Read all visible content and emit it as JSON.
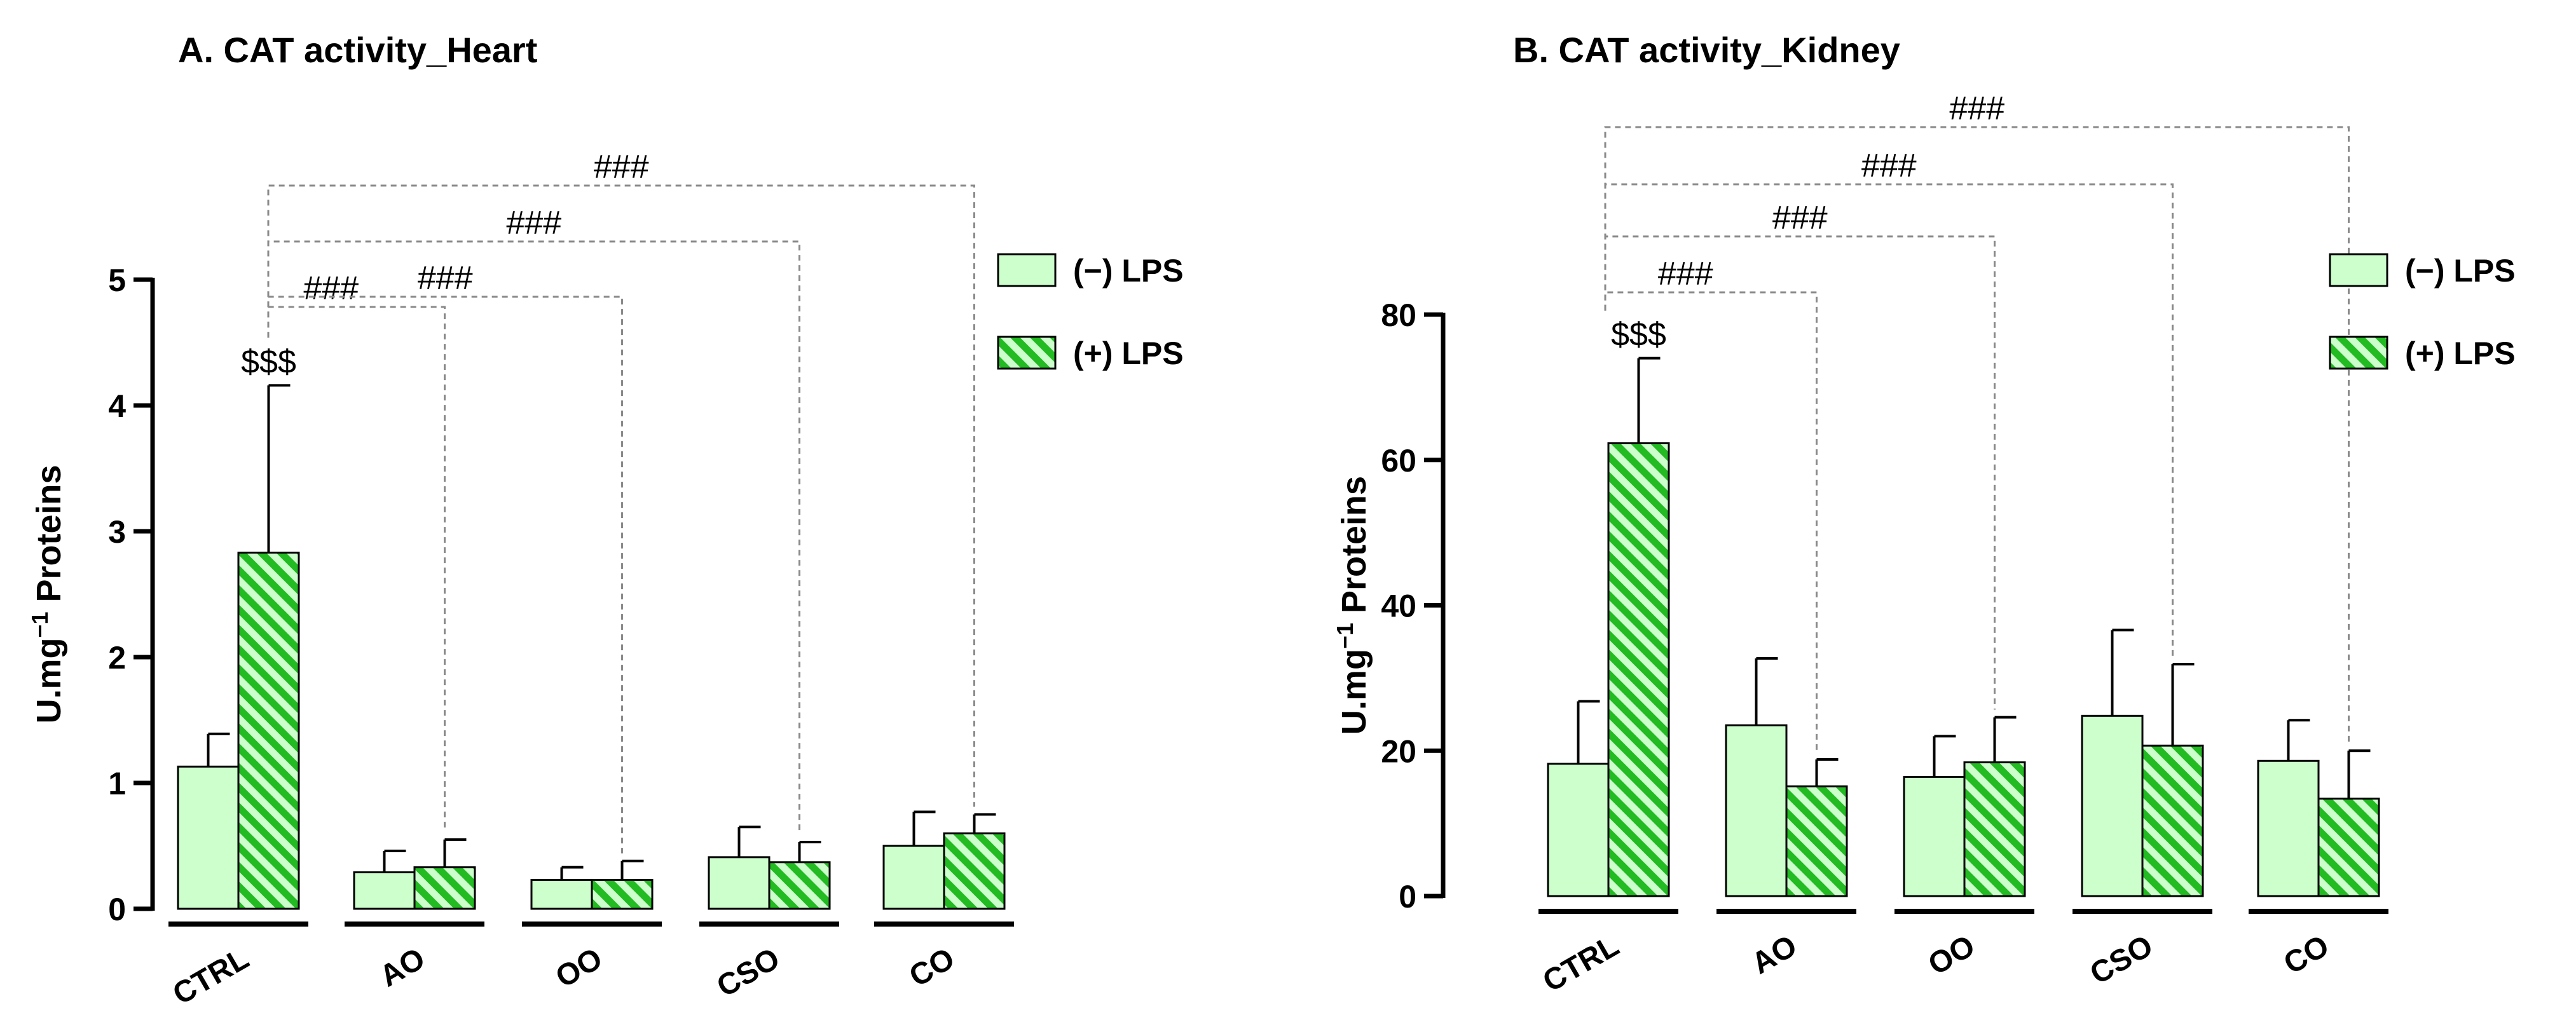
{
  "colors": {
    "light_green": "#ccffcc",
    "dark_green": "#22bb22",
    "hatch_light": "#ccffcc",
    "axis": "#000000"
  },
  "chart_data": [
    {
      "type": "bar",
      "title": "A. CAT activity_Heart",
      "ylabel_main": "U.mg",
      "ylabel_sup": "−1",
      "ylabel_rest": " Proteins",
      "xlabel": "",
      "ylim": [
        0,
        5
      ],
      "yticks": [
        "0",
        "1",
        "2",
        "3",
        "4",
        "5"
      ],
      "categories": [
        "CTRL",
        "AO",
        "OO",
        "CSO",
        "CO"
      ],
      "series": [
        {
          "name": "(−) LPS",
          "values": [
            1.13,
            0.29,
            0.23,
            0.41,
            0.5
          ],
          "errors": [
            0.26,
            0.17,
            0.1,
            0.24,
            0.27
          ]
        },
        {
          "name": "(+) LPS",
          "values": [
            2.83,
            0.33,
            0.23,
            0.37,
            0.6
          ],
          "errors": [
            1.33,
            0.22,
            0.15,
            0.16,
            0.15
          ]
        }
      ],
      "annotations": [
        {
          "text": "$$$",
          "category": "CTRL",
          "series": "(+) LPS"
        }
      ],
      "brackets": [
        {
          "from": "CTRL",
          "to": "AO",
          "label": "###"
        },
        {
          "from": "CTRL",
          "to": "OO",
          "label": "###"
        },
        {
          "from": "CTRL",
          "to": "CSO",
          "label": "###"
        },
        {
          "from": "CTRL",
          "to": "CO",
          "label": "###"
        }
      ],
      "legend": [
        "(−) LPS",
        "(+) LPS"
      ],
      "legend_position": "right"
    },
    {
      "type": "bar",
      "title": "B. CAT activity_Kidney",
      "ylabel_main": "U.mg",
      "ylabel_sup": "−1",
      "ylabel_rest": " Proteins",
      "xlabel": "",
      "ylim": [
        0,
        80
      ],
      "yticks": [
        "0",
        "20",
        "40",
        "60",
        "80"
      ],
      "categories": [
        "CTRL",
        "AO",
        "OO",
        "CSO",
        "CO"
      ],
      "series": [
        {
          "name": "(−) LPS",
          "values": [
            18.2,
            23.5,
            16.4,
            24.8,
            18.6
          ],
          "errors": [
            8.6,
            9.2,
            5.6,
            11.8,
            5.6
          ]
        },
        {
          "name": "(+) LPS",
          "values": [
            62.3,
            15.1,
            18.4,
            20.7,
            13.4
          ],
          "errors": [
            11.7,
            3.7,
            6.2,
            11.2,
            6.6
          ]
        }
      ],
      "annotations": [
        {
          "text": "$$$",
          "category": "CTRL",
          "series": "(+) LPS"
        }
      ],
      "brackets": [
        {
          "from": "CTRL",
          "to": "AO",
          "label": "###"
        },
        {
          "from": "CTRL",
          "to": "OO",
          "label": "###"
        },
        {
          "from": "CTRL",
          "to": "CSO",
          "label": "###"
        },
        {
          "from": "CTRL",
          "to": "CO",
          "label": "###"
        }
      ],
      "legend": [
        "(−) LPS",
        "(+) LPS"
      ],
      "legend_position": "right"
    }
  ]
}
